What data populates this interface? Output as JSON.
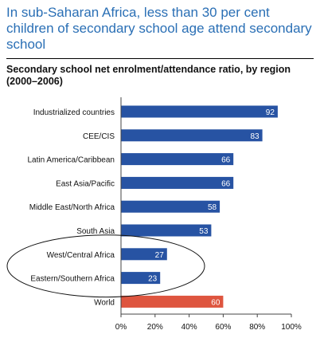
{
  "headline": "In sub-Saharan Africa, less than 30 per cent children of secondary school age attend secondary school",
  "chart_data": {
    "type": "bar",
    "orientation": "horizontal",
    "title": "Secondary school net enrolment/attendance ratio, by region (2000–2006)",
    "categories": [
      "Industrialized countries",
      "CEE/CIS",
      "Latin America/Caribbean",
      "East Asia/Pacific",
      "Middle East/North Africa",
      "South Asia",
      "West/Central Africa",
      "Eastern/Southern Africa",
      "World"
    ],
    "values": [
      92,
      83,
      66,
      66,
      58,
      53,
      27,
      23,
      60
    ],
    "value_labels": [
      "92",
      "83",
      "66",
      "66",
      "58",
      "53",
      "27",
      "23",
      "60"
    ],
    "xlim": [
      0,
      100
    ],
    "x_ticks": [
      0,
      20,
      40,
      60,
      80,
      100
    ],
    "x_tick_labels": [
      "0%",
      "20%",
      "40%",
      "60%",
      "80%",
      "100%"
    ],
    "grid": false,
    "colors": {
      "bar": "#2753a3",
      "highlight_bar": "#de553f",
      "headline": "#2a6fb5"
    },
    "highlighted_category": "World",
    "annotation": {
      "shape": "ellipse",
      "encircles": [
        "West/Central Africa",
        "Eastern/Southern Africa"
      ]
    }
  }
}
